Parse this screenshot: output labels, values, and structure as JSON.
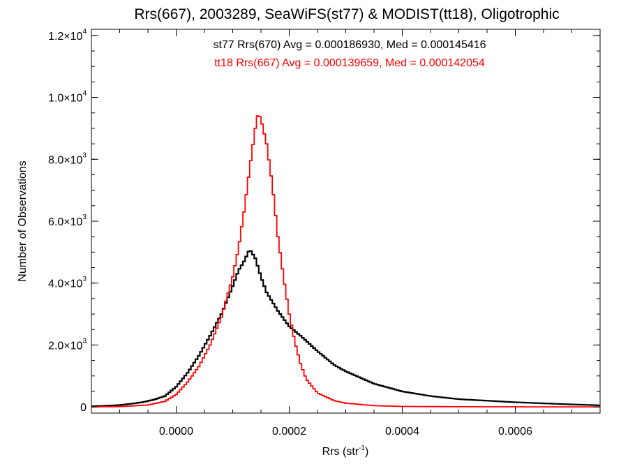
{
  "chart_data": {
    "type": "line",
    "title": "Rrs(667), 2003289, SeaWiFS(st77) & MODIST(tt18), Oligotrophic",
    "xlabel_main": "Rrs (str",
    "xlabel_sup": "-1",
    "xlabel_close": ")",
    "ylabel": "Number of Observations",
    "xlim": [
      -0.00015,
      0.00075
    ],
    "ylim": [
      -200,
      12200
    ],
    "x_ticks": [
      {
        "value": 0.0,
        "label": "0.0000"
      },
      {
        "value": 0.0002,
        "label": "0.0002"
      },
      {
        "value": 0.0004,
        "label": "0.0004"
      },
      {
        "value": 0.0006,
        "label": "0.0006"
      }
    ],
    "y_ticks": [
      {
        "value": 0,
        "mant": "0",
        "exp": ""
      },
      {
        "value": 2000,
        "mant": "2.0×10",
        "exp": "3"
      },
      {
        "value": 4000,
        "mant": "4.0×10",
        "exp": "3"
      },
      {
        "value": 6000,
        "mant": "6.0×10",
        "exp": "3"
      },
      {
        "value": 8000,
        "mant": "8.0×10",
        "exp": "3"
      },
      {
        "value": 10000,
        "mant": "1.0×10",
        "exp": "4"
      },
      {
        "value": 12000,
        "mant": "1.2×10",
        "exp": "4"
      }
    ],
    "series": [
      {
        "name": "st77",
        "legend": "st77 Rrs(670) Avg = 0.000186930, Med = 0.000145416",
        "color": "#000000",
        "points": [
          [
            -0.00015,
            20
          ],
          [
            -0.00012,
            40
          ],
          [
            -0.0001,
            60
          ],
          [
            -8e-05,
            100
          ],
          [
            -6e-05,
            150
          ],
          [
            -4e-05,
            230
          ],
          [
            -2e-05,
            350
          ],
          [
            0.0,
            650
          ],
          [
            2e-05,
            1100
          ],
          [
            4e-05,
            1650
          ],
          [
            6e-05,
            2300
          ],
          [
            8e-05,
            3000
          ],
          [
            0.0001,
            3900
          ],
          [
            0.00011,
            4400
          ],
          [
            0.00012,
            4700
          ],
          [
            0.00013,
            5100
          ],
          [
            0.00014,
            4800
          ],
          [
            0.00015,
            4200
          ],
          [
            0.00016,
            3700
          ],
          [
            0.00018,
            3100
          ],
          [
            0.0002,
            2600
          ],
          [
            0.00022,
            2300
          ],
          [
            0.00025,
            1800
          ],
          [
            0.00028,
            1350
          ],
          [
            0.0003,
            1150
          ],
          [
            0.00035,
            750
          ],
          [
            0.0004,
            500
          ],
          [
            0.00045,
            350
          ],
          [
            0.0005,
            250
          ],
          [
            0.0006,
            150
          ],
          [
            0.0007,
            80
          ],
          [
            0.00075,
            50
          ]
        ]
      },
      {
        "name": "tt18",
        "legend": "tt18 Rrs(667) Avg = 0.000139659, Med = 0.000142054",
        "color": "#ff0000",
        "points": [
          [
            -0.00015,
            0
          ],
          [
            -0.0001,
            10
          ],
          [
            -5e-05,
            60
          ],
          [
            -2e-05,
            180
          ],
          [
            0.0,
            400
          ],
          [
            2e-05,
            800
          ],
          [
            4e-05,
            1300
          ],
          [
            6e-05,
            2000
          ],
          [
            8e-05,
            2900
          ],
          [
            0.0001,
            4200
          ],
          [
            0.00011,
            5100
          ],
          [
            0.00012,
            6300
          ],
          [
            0.00013,
            7700
          ],
          [
            0.00014,
            9000
          ],
          [
            0.000145,
            9500
          ],
          [
            0.00015,
            9300
          ],
          [
            0.00016,
            8500
          ],
          [
            0.00017,
            7200
          ],
          [
            0.00018,
            5500
          ],
          [
            0.00019,
            4200
          ],
          [
            0.0002,
            3000
          ],
          [
            0.00021,
            2100
          ],
          [
            0.00022,
            1400
          ],
          [
            0.00023,
            900
          ],
          [
            0.00025,
            450
          ],
          [
            0.00028,
            200
          ],
          [
            0.0003,
            120
          ],
          [
            0.00035,
            40
          ],
          [
            0.0004,
            15
          ],
          [
            0.0005,
            5
          ],
          [
            0.0006,
            2
          ],
          [
            0.00075,
            0
          ]
        ]
      }
    ]
  }
}
